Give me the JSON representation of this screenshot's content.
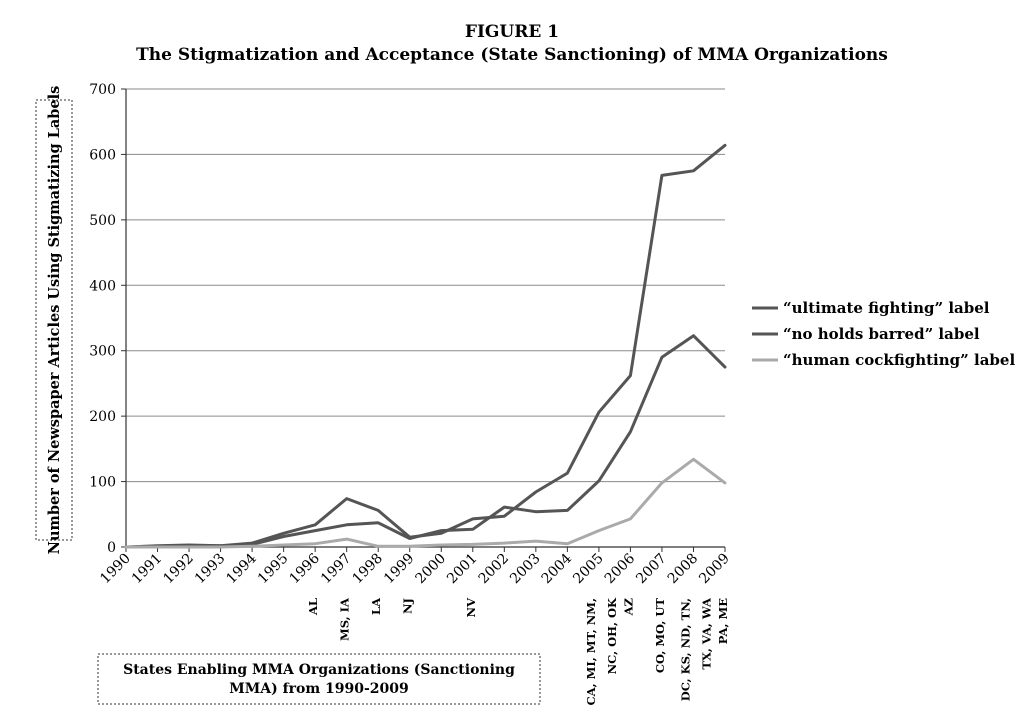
{
  "figure_label": "FIGURE 1",
  "chart_data": {
    "type": "line",
    "title": "The Stigmatization and Acceptance (State Sanctioning) of MMA Organizations",
    "ylabel": "Number of Newspaper Articles Using Stigmatizing Labels",
    "ylim": [
      0,
      700
    ],
    "yticks": [
      "0",
      "100",
      "200",
      "300",
      "400",
      "500",
      "600",
      "700"
    ],
    "categories": [
      "1990",
      "1991",
      "1992",
      "1993",
      "1994",
      "1995",
      "1996",
      "1997",
      "1998",
      "1999",
      "2000",
      "2001",
      "2002",
      "2003",
      "2004",
      "2005",
      "2006",
      "2007",
      "2008",
      "2009"
    ],
    "grid": "horizontal",
    "legend_position": "right",
    "series": [
      {
        "name": "“ultimate fighting” label",
        "color": "#555555",
        "values": [
          0,
          2,
          3,
          2,
          6,
          21,
          34,
          74,
          56,
          15,
          21,
          43,
          47,
          84,
          113,
          206,
          262,
          568,
          575,
          614
        ]
      },
      {
        "name": "“no holds barred” label",
        "color": "#555555",
        "values": [
          0,
          1,
          2,
          2,
          4,
          16,
          25,
          34,
          37,
          13,
          25,
          27,
          61,
          54,
          56,
          101,
          176,
          290,
          323,
          275
        ]
      },
      {
        "name": "“human cockfighting” label",
        "color": "#aaaaaa",
        "values": [
          0,
          0,
          0,
          0,
          1,
          3,
          5,
          12,
          1,
          1,
          3,
          4,
          6,
          9,
          5,
          25,
          43,
          98,
          134,
          98
        ]
      }
    ],
    "states_box_label": "States Enabling MMA Organizations (Sanctioning MMA) from 1990-2009",
    "state_annotations": [
      {
        "year": "1996",
        "states": "AL"
      },
      {
        "year": "1997",
        "states": "MS, IA"
      },
      {
        "year": "1998",
        "states": "LA"
      },
      {
        "year": "1999",
        "states": "NJ"
      },
      {
        "year": "2001",
        "states": "NV"
      },
      {
        "year": "2005",
        "states": "CA, MI, MT, NM,"
      },
      {
        "year": "2005",
        "states": "NC, OH, OK"
      },
      {
        "year": "2006",
        "states": "AZ"
      },
      {
        "year": "2007",
        "states": "CO, MO, UT"
      },
      {
        "year": "2008",
        "states": "DC, KS, ND, TN,"
      },
      {
        "year": "2008",
        "states": "TX, VA, WA"
      },
      {
        "year": "2009",
        "states": "PA, ME"
      }
    ]
  }
}
